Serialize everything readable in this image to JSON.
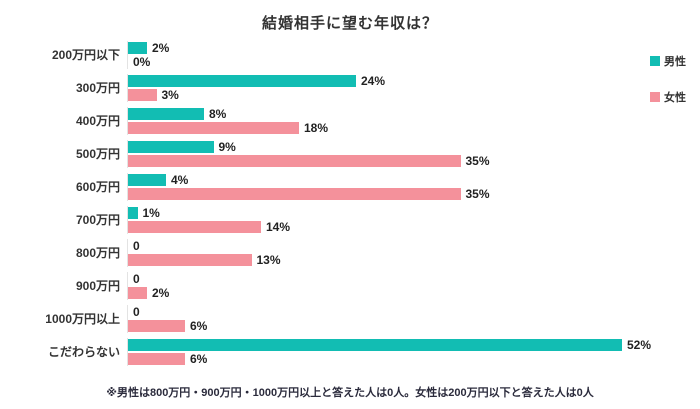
{
  "chart_data": {
    "type": "bar",
    "orientation": "horizontal",
    "title": "結婚相手に望む年収は？",
    "categories": [
      "200万円以下",
      "300万円",
      "400万円",
      "500万円",
      "600万円",
      "700万円",
      "800万円",
      "900万円",
      "1000万円以上",
      "こだわらない"
    ],
    "series": [
      {
        "name": "男性",
        "color": "#12bdb3",
        "values": [
          2,
          24,
          8,
          9,
          4,
          1,
          0,
          0,
          0,
          52
        ],
        "labels": [
          "2%",
          "24%",
          "8%",
          "9%",
          "4%",
          "1%",
          "0",
          "0",
          "0",
          "52%"
        ]
      },
      {
        "name": "女性",
        "color": "#f4919b",
        "values": [
          0,
          3,
          18,
          35,
          35,
          14,
          13,
          2,
          6,
          6
        ],
        "labels": [
          "0%",
          "3%",
          "18%",
          "35%",
          "35%",
          "14%",
          "13%",
          "2%",
          "6%",
          "6%"
        ]
      }
    ],
    "xlim": [
      0,
      56
    ],
    "grid": false,
    "legend_position": "right",
    "footnote": "※男性は800万円・900万円・1000万円以上と答えた人は0人。女性は200万円以下と答えた人は0人"
  }
}
